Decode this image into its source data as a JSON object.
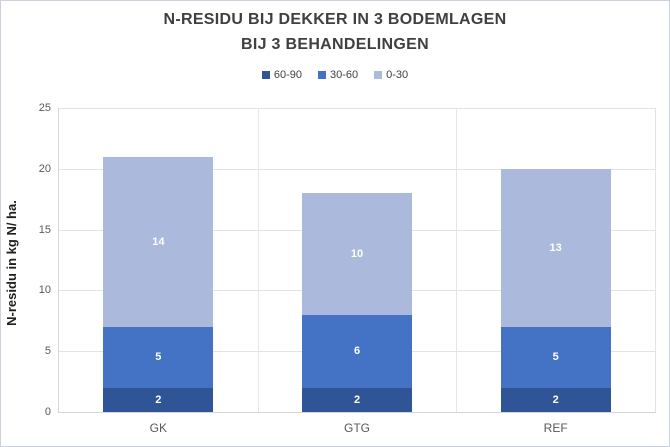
{
  "chart_data": {
    "type": "bar",
    "stacked": true,
    "title": "N-RESIDU BIJ DEKKER IN 3 BODEMLAGEN BIJ 3 BEHANDELINGEN",
    "title_lines": {
      "line1": "N-RESIDU BIJ DEKKER IN 3 BODEMLAGEN",
      "line2": "BIJ 3 BEHANDELINGEN"
    },
    "categories": [
      "GK",
      "GTG",
      "REF"
    ],
    "series": [
      {
        "name": "60-90",
        "color": "#2f5597",
        "values": [
          2,
          2,
          2
        ]
      },
      {
        "name": "30-60",
        "color": "#4472c4",
        "values": [
          5,
          6,
          5
        ]
      },
      {
        "name": "0-30",
        "color": "#aab9dc",
        "values": [
          14,
          10,
          13
        ]
      }
    ],
    "totals": [
      21,
      18,
      20
    ],
    "xlabel": "",
    "ylabel": "N-residu in kg N/ ha.",
    "ylim": [
      0,
      25
    ],
    "yticks": [
      0,
      5,
      10,
      15,
      20,
      25
    ],
    "grid": true,
    "legend_position": "top",
    "data_labels": "inside-center-white-bold"
  },
  "style": {
    "gridline_color": "#e3e3e3",
    "axis_line_color": "#d6d6d6",
    "title_color": "#404040",
    "tick_label_color": "#595959",
    "outer_border_color": "#ccd2dd",
    "background": "#ffffff"
  }
}
